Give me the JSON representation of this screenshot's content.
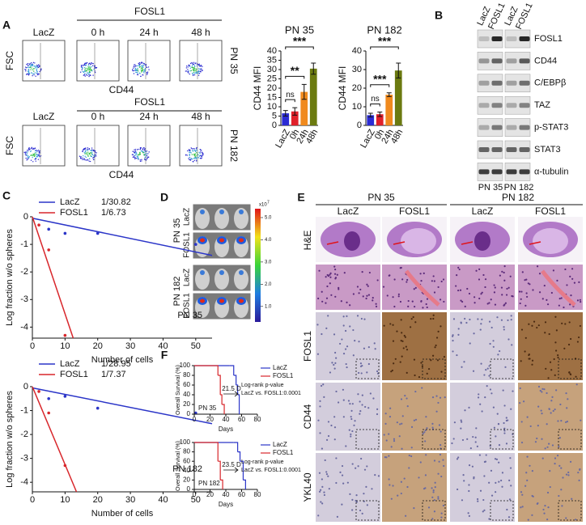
{
  "panel_labels": {
    "a": "A",
    "b": "B",
    "c": "C",
    "d": "D",
    "e": "E",
    "f": "F"
  },
  "flow": {
    "y_label": "FSC",
    "x_label": "CD44",
    "group_label": "FOSL1",
    "control_label": "LacZ",
    "times": [
      "0 h",
      "24 h",
      "48 h"
    ],
    "cell_lines": [
      "PN 35",
      "PN 182"
    ]
  },
  "western": {
    "lanes": [
      "LacZ",
      "FOSL1",
      "LacZ",
      "FOSL1"
    ],
    "proteins": [
      "FOSL1",
      "CD44",
      "C/EBPβ",
      "TAZ",
      "p-STAT3",
      "STAT3",
      "α-tubulin"
    ],
    "cell_lines": [
      "PN 35",
      "PN 182"
    ]
  },
  "imaging": {
    "cell_lines": [
      "PN 35",
      "PN 182"
    ],
    "conditions": [
      "LacZ",
      "FOSL1"
    ],
    "scale_unit": "x10",
    "scale_exponent": "7",
    "scale_lim": [
      0.3,
      5.4
    ],
    "scale_ticks": [
      {
        "value": 5,
        "label": "5.0"
      },
      {
        "value": 4,
        "label": "4.0"
      },
      {
        "value": 3,
        "label": "3.0"
      },
      {
        "value": 2,
        "label": "2.0"
      },
      {
        "value": 1,
        "label": "1.0"
      }
    ]
  },
  "histology": {
    "cell_lines": [
      "PN 35",
      "PN 182"
    ],
    "conditions": [
      "LacZ",
      "FOSL1"
    ],
    "stains": [
      "H&E",
      "FOSL1",
      "CD44",
      "YKL40"
    ]
  },
  "chart_data": [
    {
      "type": "bar",
      "title": "PN 35",
      "y_label": "CD44 MFI",
      "categories": [
        "LacZ",
        "0h",
        "24h",
        "48h"
      ],
      "values": [
        6.5,
        7.5,
        18,
        30.5
      ],
      "errors": [
        1.5,
        2,
        4,
        3
      ],
      "colors": [
        "#2b2bd4",
        "#e0202a",
        "#f08a1e",
        "#6b7a10"
      ],
      "significance": [
        null,
        "ns",
        "**",
        "***"
      ],
      "ylim": [
        0,
        40
      ],
      "yticks": [
        0,
        5,
        10,
        15,
        20,
        25,
        30,
        35,
        40
      ]
    },
    {
      "type": "bar",
      "title": "PN 182",
      "y_label": "CD44 MFI",
      "categories": [
        "LacZ",
        "0h",
        "24h",
        "48h"
      ],
      "values": [
        5.5,
        6,
        16.5,
        29.5
      ],
      "errors": [
        1,
        1.2,
        1,
        4
      ],
      "colors": [
        "#2b2bd4",
        "#e0202a",
        "#f08a1e",
        "#6b7a10"
      ],
      "significance": [
        null,
        "ns",
        "***",
        "***"
      ],
      "ylim": [
        0,
        40
      ],
      "yticks": [
        0,
        10,
        20,
        30,
        40
      ]
    },
    {
      "type": "scatter",
      "annotation": "PN 35",
      "x_label": "Number of cells",
      "y_label": "Log fraction w/o spheres",
      "xlim": [
        0,
        55
      ],
      "ylim": [
        -4.4,
        0
      ],
      "xticks": [
        0,
        10,
        20,
        30,
        40,
        50
      ],
      "yticks": [
        0,
        -1,
        -2,
        -3,
        -4
      ],
      "series": [
        {
          "name": "LacZ",
          "frequency": "1/30.82",
          "color": "#2b35c8",
          "x": [
            5,
            10,
            20,
            50
          ],
          "values": [
            -0.45,
            -0.6,
            -0.6,
            -1.0
          ],
          "fit": {
            "x": [
              0,
              55
            ],
            "values": [
              -0.05,
              -1.4
            ]
          }
        },
        {
          "name": "FOSL1",
          "frequency": "1/6.73",
          "color": "#d8262b",
          "x": [
            2,
            5,
            10
          ],
          "values": [
            -0.3,
            -1.2,
            -4.3
          ],
          "fit": {
            "x": [
              0,
              12.5
            ],
            "values": [
              0,
              -4.4
            ]
          }
        }
      ]
    },
    {
      "type": "scatter",
      "annotation": "PN 182",
      "x_label": "Number of cells",
      "y_label": "Log fraction w/o spheres",
      "xlim": [
        0,
        55
      ],
      "ylim": [
        -4.4,
        0
      ],
      "xticks": [
        0,
        10,
        20,
        30,
        40,
        50
      ],
      "yticks": [
        0,
        -1,
        -2,
        -3,
        -4
      ],
      "series": [
        {
          "name": "LacZ",
          "frequency": "1/28.95",
          "color": "#2b35c8",
          "x": [
            5,
            10,
            20,
            50
          ],
          "values": [
            -0.5,
            -0.4,
            -0.9,
            -1.1
          ],
          "fit": {
            "x": [
              0,
              55
            ],
            "values": [
              -0.05,
              -1.55
            ]
          }
        },
        {
          "name": "FOSL1",
          "frequency": "1/7.37",
          "color": "#d8262b",
          "x": [
            2,
            5,
            10
          ],
          "values": [
            -0.2,
            -1.1,
            -3.3
          ],
          "fit": {
            "x": [
              0,
              13.5
            ],
            "values": [
              0,
              -4.4
            ]
          }
        }
      ]
    },
    {
      "type": "step",
      "annotation": "PN 35",
      "median_difference": "21.5 D",
      "test_label": "Log-rank p-value",
      "test_result": "LacZ vs. FOSL1:0.0001",
      "x_label": "Days",
      "y_label": "Overall Survival (%)",
      "xlim": [
        0,
        80
      ],
      "ylim": [
        0,
        100
      ],
      "xticks": [
        0,
        20,
        40,
        60,
        80
      ],
      "yticks": [
        0,
        20,
        40,
        60,
        80,
        100
      ],
      "series": [
        {
          "name": "LacZ",
          "color": "#2b35c8",
          "x": [
            0,
            45,
            50,
            53,
            55,
            57
          ],
          "values": [
            100,
            100,
            80,
            60,
            40,
            0
          ]
        },
        {
          "name": "FOSL1",
          "color": "#d8262b",
          "x": [
            0,
            27,
            30,
            33,
            35,
            38
          ],
          "values": [
            100,
            100,
            80,
            40,
            20,
            0
          ]
        }
      ]
    },
    {
      "type": "step",
      "annotation": "PN 182",
      "median_difference": "23.5 D",
      "test_label": "Log-rank p-value",
      "test_result": "LacZ vs. FOSL1:0.0001",
      "x_label": "Days",
      "y_label": "Overall Survival (%)",
      "xlim": [
        0,
        80
      ],
      "ylim": [
        0,
        100
      ],
      "xticks": [
        0,
        20,
        40,
        60,
        80
      ],
      "yticks": [
        0,
        20,
        40,
        60,
        80,
        100
      ],
      "series": [
        {
          "name": "LacZ",
          "color": "#2b35c8",
          "x": [
            0,
            50,
            55,
            58,
            62,
            65
          ],
          "values": [
            100,
            100,
            80,
            60,
            20,
            0
          ]
        },
        {
          "name": "FOSL1",
          "color": "#d8262b",
          "x": [
            0,
            28,
            30,
            33,
            36
          ],
          "values": [
            100,
            100,
            60,
            20,
            0
          ]
        }
      ]
    }
  ]
}
